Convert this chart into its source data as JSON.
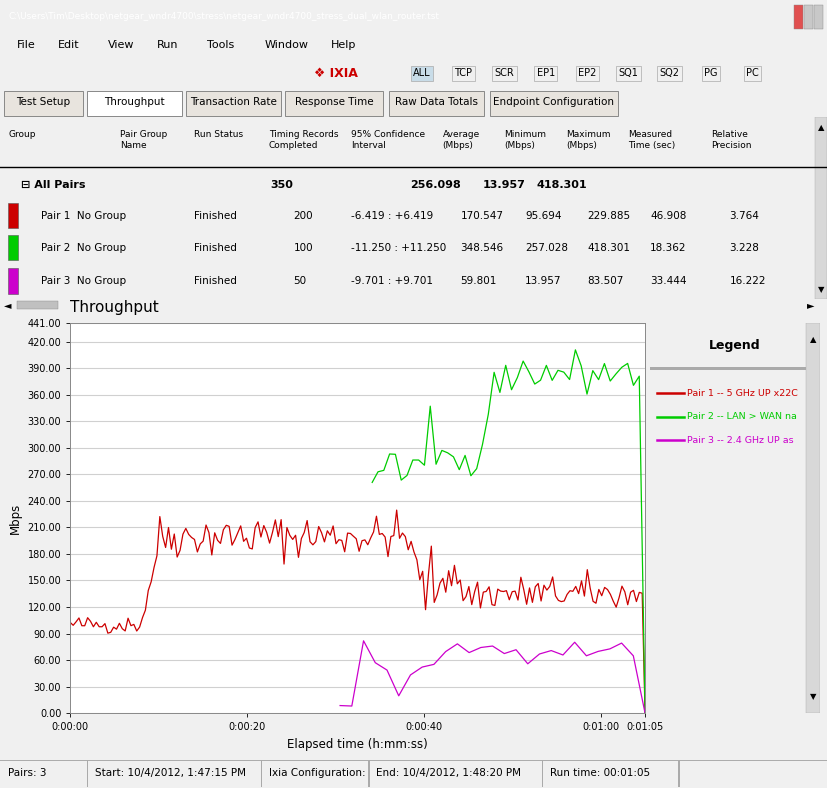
{
  "title": "Throughput",
  "xlabel": "Elapsed time (h:mm:ss)",
  "ylabel": "Mbps",
  "ylim": [
    0,
    441
  ],
  "yticks": [
    0,
    30,
    60,
    90,
    120,
    150,
    180,
    210,
    240,
    270,
    300,
    330,
    360,
    390,
    420,
    441
  ],
  "ytick_labels": [
    "0.00",
    "30.00",
    "60.00",
    "90.00",
    "120.00",
    "150.00",
    "180.00",
    "210.00",
    "240.00",
    "270.00",
    "300.00",
    "330.00",
    "360.00",
    "390.00",
    "420.00",
    "441.00"
  ],
  "xticks": [
    0,
    20,
    40,
    60,
    65
  ],
  "xtick_labels": [
    "0:00:00",
    "0:00:20",
    "0:00:40",
    "0:01:00",
    "0:01:05"
  ],
  "xlim": [
    0,
    65
  ],
  "bg_color": "#f0f0f0",
  "plot_bg": "#ffffff",
  "grid_color": "#d0d0d0",
  "pair1_color": "#cc0000",
  "pair2_color": "#00cc00",
  "pair3_color": "#cc00cc",
  "legend_title": "Legend",
  "legend_entries": [
    "Pair 1 -- 5 GHz UP x22C",
    "Pair 2 -- LAN > WAN na",
    "Pair 3 -- 2.4 GHz UP as"
  ],
  "window_title": "C:\\Users\\Tim\\Desktop\\netgear_wndr4700\\stress\\netgear_wndr4700_stress_dual_wlan_router.tst",
  "menu_items": [
    "File",
    "Edit",
    "View",
    "Run",
    "Tools",
    "Window",
    "Help"
  ],
  "tab_labels": [
    "Test Setup",
    "Throughput",
    "Transaction Rate",
    "Response Time",
    "Raw Data Totals",
    "Endpoint Configuration"
  ],
  "toolbar_buttons": [
    "ALL",
    "TCP",
    "SCR",
    "EP1",
    "EP2",
    "SQ1",
    "SQ2",
    "PG",
    "PC"
  ],
  "status_bar": [
    "Pairs: 3",
    "Start: 10/4/2012, 1:47:15 PM",
    "Ixia Configuration:",
    "End: 10/4/2012, 1:48:20 PM",
    "Run time: 00:01:05"
  ],
  "total_time_sec": 65
}
